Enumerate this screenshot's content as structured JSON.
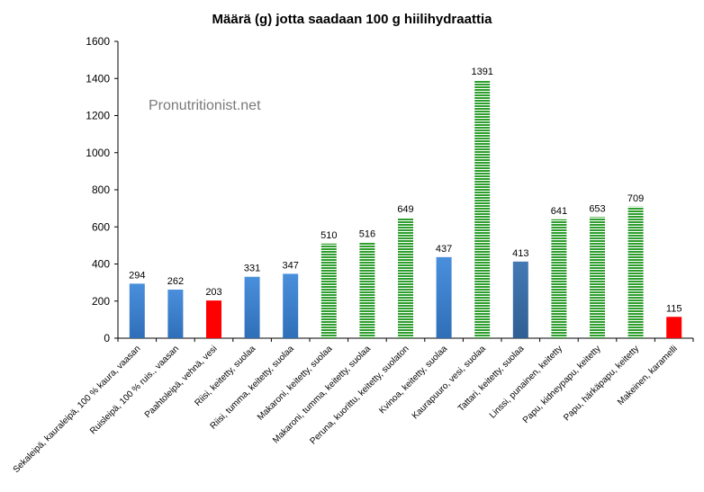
{
  "chart_data": {
    "type": "bar",
    "title": "Määrä (g) jotta saadaan 100 g hiilihydraattia",
    "xlabel": "",
    "ylabel": "",
    "ylim": [
      0,
      1600
    ],
    "yticks": [
      0,
      200,
      400,
      600,
      800,
      1000,
      1200,
      1400,
      1600
    ],
    "grid": false,
    "legend": "none",
    "watermark": "Pronutritionist.net",
    "colors": {
      "blue": "#3b7fcf",
      "darkblue": "#3a6ea8",
      "green": "#2e9e2e",
      "red": "#ff0000"
    },
    "categories": [
      "Sekaleipä, kauraleipä, 100 % kaura, vaasan",
      "Ruisleipä, 100 % ruis., vaasan",
      "Paahtoleipä, vehnä, vesi",
      "Riisi, keitetty, suolaa",
      "Riisi, tumma, keitetty, suolaa",
      "Makaroni, keitetty, suolaa",
      "Makaroni, tumma, keitetty, suolaa",
      "Peruna, kuorittu, keitetty, suolaton",
      "Kvinoa, keitetty, suolaa",
      "Kaurapuuro, vesi, suolaa",
      "Tattari, keitetty, suolaa",
      "Linssi, punainen, keitetty",
      "Papu, kidneypapu, keitetty",
      "Papu, härkäpapu, keitetty",
      "Makeinen, karamelli"
    ],
    "values": [
      294,
      262,
      203,
      331,
      347,
      510,
      516,
      649,
      437,
      1391,
      413,
      641,
      653,
      709,
      115
    ],
    "bar_colors": [
      "blue",
      "blue",
      "red",
      "blue",
      "blue",
      "green",
      "green",
      "green",
      "blue",
      "green",
      "darkblue",
      "green",
      "green",
      "green",
      "red"
    ]
  }
}
